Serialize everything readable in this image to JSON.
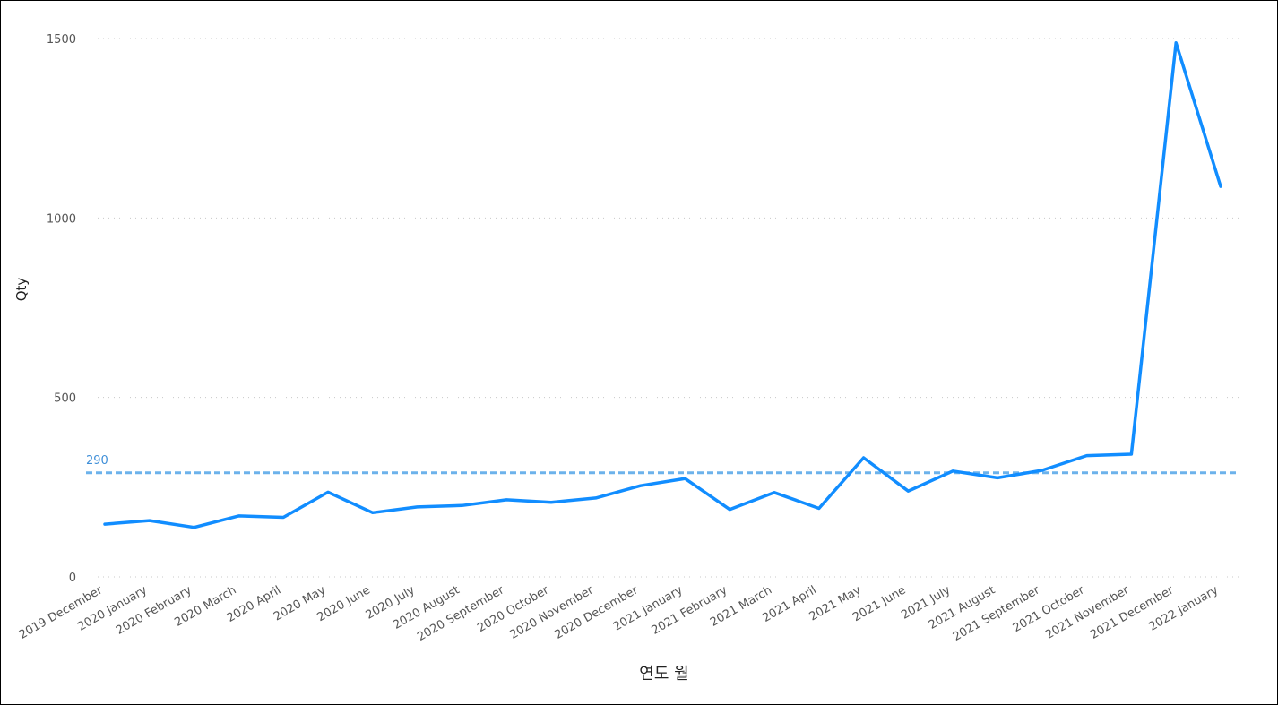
{
  "chart_data": {
    "type": "line",
    "xlabel": "연도 월",
    "ylabel": "Qty",
    "ylim": [
      0,
      1500
    ],
    "yticks": [
      0,
      500,
      1000,
      1500
    ],
    "grid": "horizontal-dotted",
    "categories": [
      "2019 December",
      "2020 January",
      "2020 February",
      "2020 March",
      "2020 April",
      "2020 May",
      "2020 June",
      "2020 July",
      "2020 August",
      "2020 September",
      "2020 October",
      "2020 November",
      "2020 December",
      "2021 January",
      "2021 February",
      "2021 March",
      "2021 April",
      "2021 May",
      "2021 June",
      "2021 July",
      "2021 August",
      "2021 September",
      "2021 October",
      "2021 November",
      "2021 December",
      "2022 January"
    ],
    "series": [
      {
        "color": "#118DFF",
        "values": [
          147,
          157,
          138,
          170,
          166,
          236,
          179,
          195,
          199,
          215,
          208,
          220,
          254,
          274,
          188,
          235,
          191,
          332,
          239,
          295,
          276,
          297,
          338,
          342,
          1488,
          1088
        ]
      }
    ],
    "reference_line": {
      "value": 290,
      "label": "290",
      "color": "#6CB2EB",
      "style": "dashed"
    }
  }
}
